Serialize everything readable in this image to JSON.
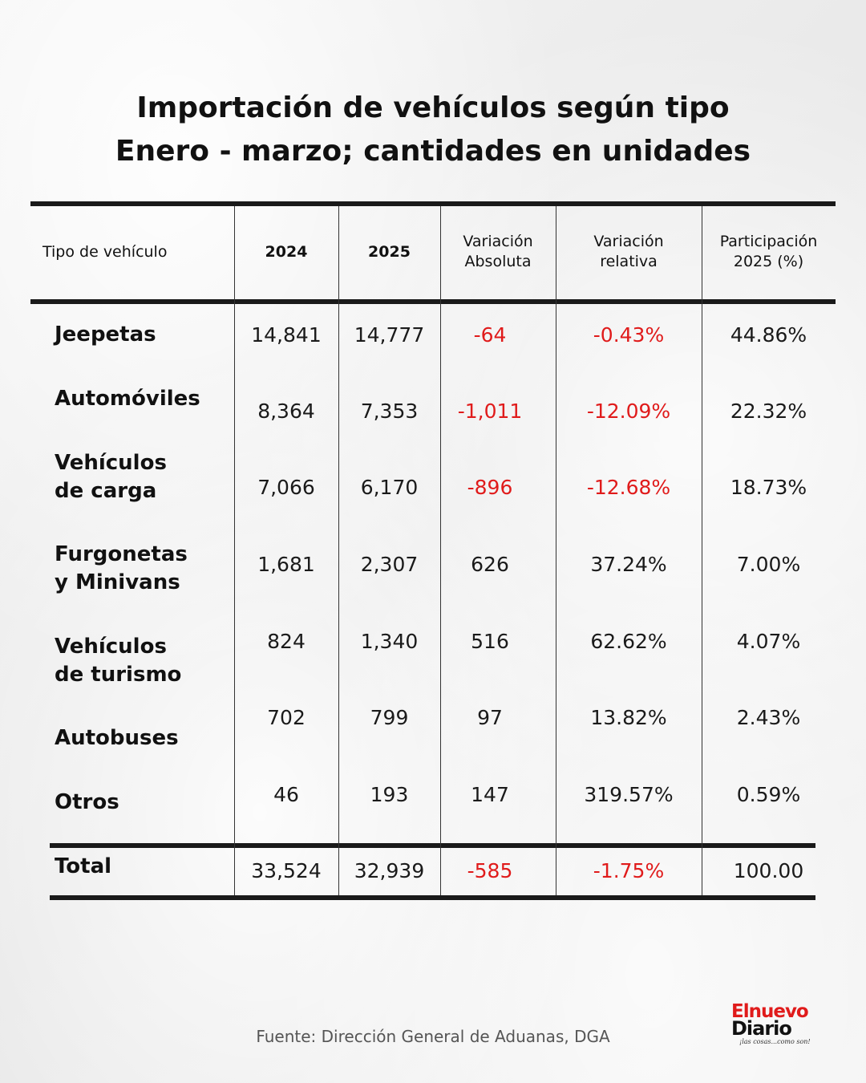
{
  "title_line1": "Importación de vehículos según tipo",
  "title_line2": "Enero - marzo; cantidades en unidades",
  "colors": {
    "negative": "#e01b1b",
    "text": "#1a1a1a",
    "rules": "#1a1a1a"
  },
  "chart_data": {
    "type": "table",
    "headers": {
      "type": "Tipo de vehículo",
      "y2024": "2024",
      "y2025": "2025",
      "var_abs_1": "Variación",
      "var_abs_2": "Absoluta",
      "var_rel_1": "Variación",
      "var_rel_2": "relativa",
      "part_1": "Participación",
      "part_2": "2025 (%)"
    },
    "rows": [
      {
        "type1": "Jeepetas",
        "type2": "",
        "y2024": "14,841",
        "y2025": "14,777",
        "var_abs": "-64",
        "var_rel": "-0.43%",
        "part": "44.86%"
      },
      {
        "type1": "Automóviles",
        "type2": "",
        "y2024": "8,364",
        "y2025": "7,353",
        "var_abs": "-1,011",
        "var_rel": "-12.09%",
        "part": "22.32%"
      },
      {
        "type1": "Vehículos",
        "type2": "de carga",
        "y2024": "7,066",
        "y2025": "6,170",
        "var_abs": "-896",
        "var_rel": "-12.68%",
        "part": "18.73%"
      },
      {
        "type1": "Furgonetas",
        "type2": "y Minivans",
        "y2024": "1,681",
        "y2025": "2,307",
        "var_abs": "626",
        "var_rel": "37.24%",
        "part": "7.00%"
      },
      {
        "type1": "Vehículos",
        "type2": "de turismo",
        "y2024": "824",
        "y2025": "1,340",
        "var_abs": "516",
        "var_rel": "62.62%",
        "part": "4.07%"
      },
      {
        "type1": "Autobuses",
        "type2": "",
        "y2024": "702",
        "y2025": "799",
        "var_abs": "97",
        "var_rel": "13.82%",
        "part": "2.43%"
      },
      {
        "type1": "Otros",
        "type2": "",
        "y2024": "46",
        "y2025": "193",
        "var_abs": "147",
        "var_rel": "319.57%",
        "part": "0.59%"
      }
    ],
    "total": {
      "label": "Total",
      "y2024": "33,524",
      "y2025": "32,939",
      "var_abs": "-585",
      "var_rel": "-1.75%",
      "part": "100.00"
    }
  },
  "source": "Fuente: Dirección General de Aduanas, DGA",
  "logo": {
    "line1": "Elnuevo",
    "line2": "Diario",
    "tagline": "¡las cosas...como son!"
  }
}
